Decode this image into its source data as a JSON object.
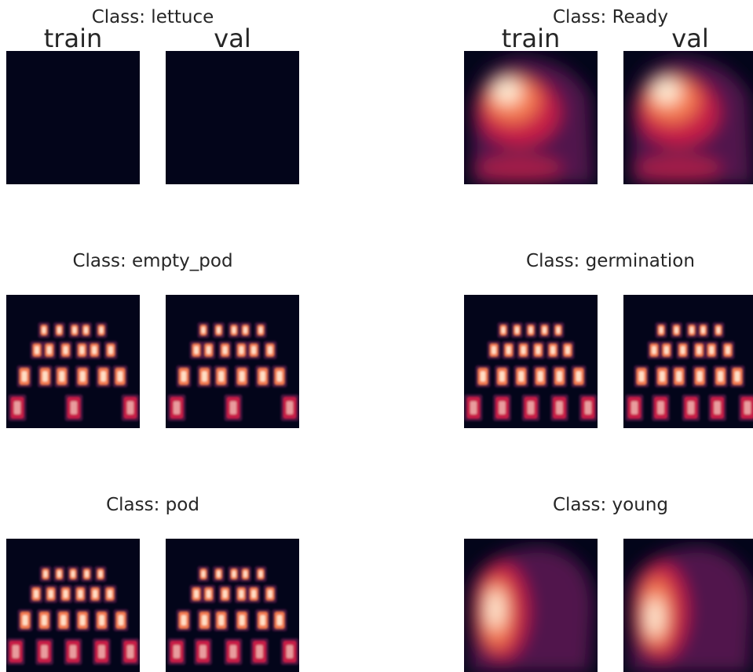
{
  "column_labels": [
    "train",
    "val"
  ],
  "colors": {
    "background_dark": "#03051a",
    "accent_red": "#c81e46",
    "accent_orange": "#f57a4f",
    "highlight": "#fff0d8",
    "title_text": "#262626"
  },
  "chart_data": {
    "type": "heatmap",
    "colormap": "rocket",
    "grid": false,
    "panels": [
      {
        "title": "Class: lettuce",
        "images": [
          "train",
          "val"
        ],
        "pattern": "empty"
      },
      {
        "title": "Class: Ready",
        "images": [
          "train",
          "val"
        ],
        "pattern": "diffuse-upper"
      },
      {
        "title": "Class: empty_pod",
        "images": [
          "train",
          "val"
        ],
        "pattern": "pod-grid-sparse"
      },
      {
        "title": "Class: germination",
        "images": [
          "train",
          "val"
        ],
        "pattern": "pod-grid"
      },
      {
        "title": "Class: pod",
        "images": [
          "train",
          "val"
        ],
        "pattern": "pod-grid"
      },
      {
        "title": "Class: young",
        "images": [
          "train",
          "val"
        ],
        "pattern": "diffuse-left"
      }
    ]
  }
}
